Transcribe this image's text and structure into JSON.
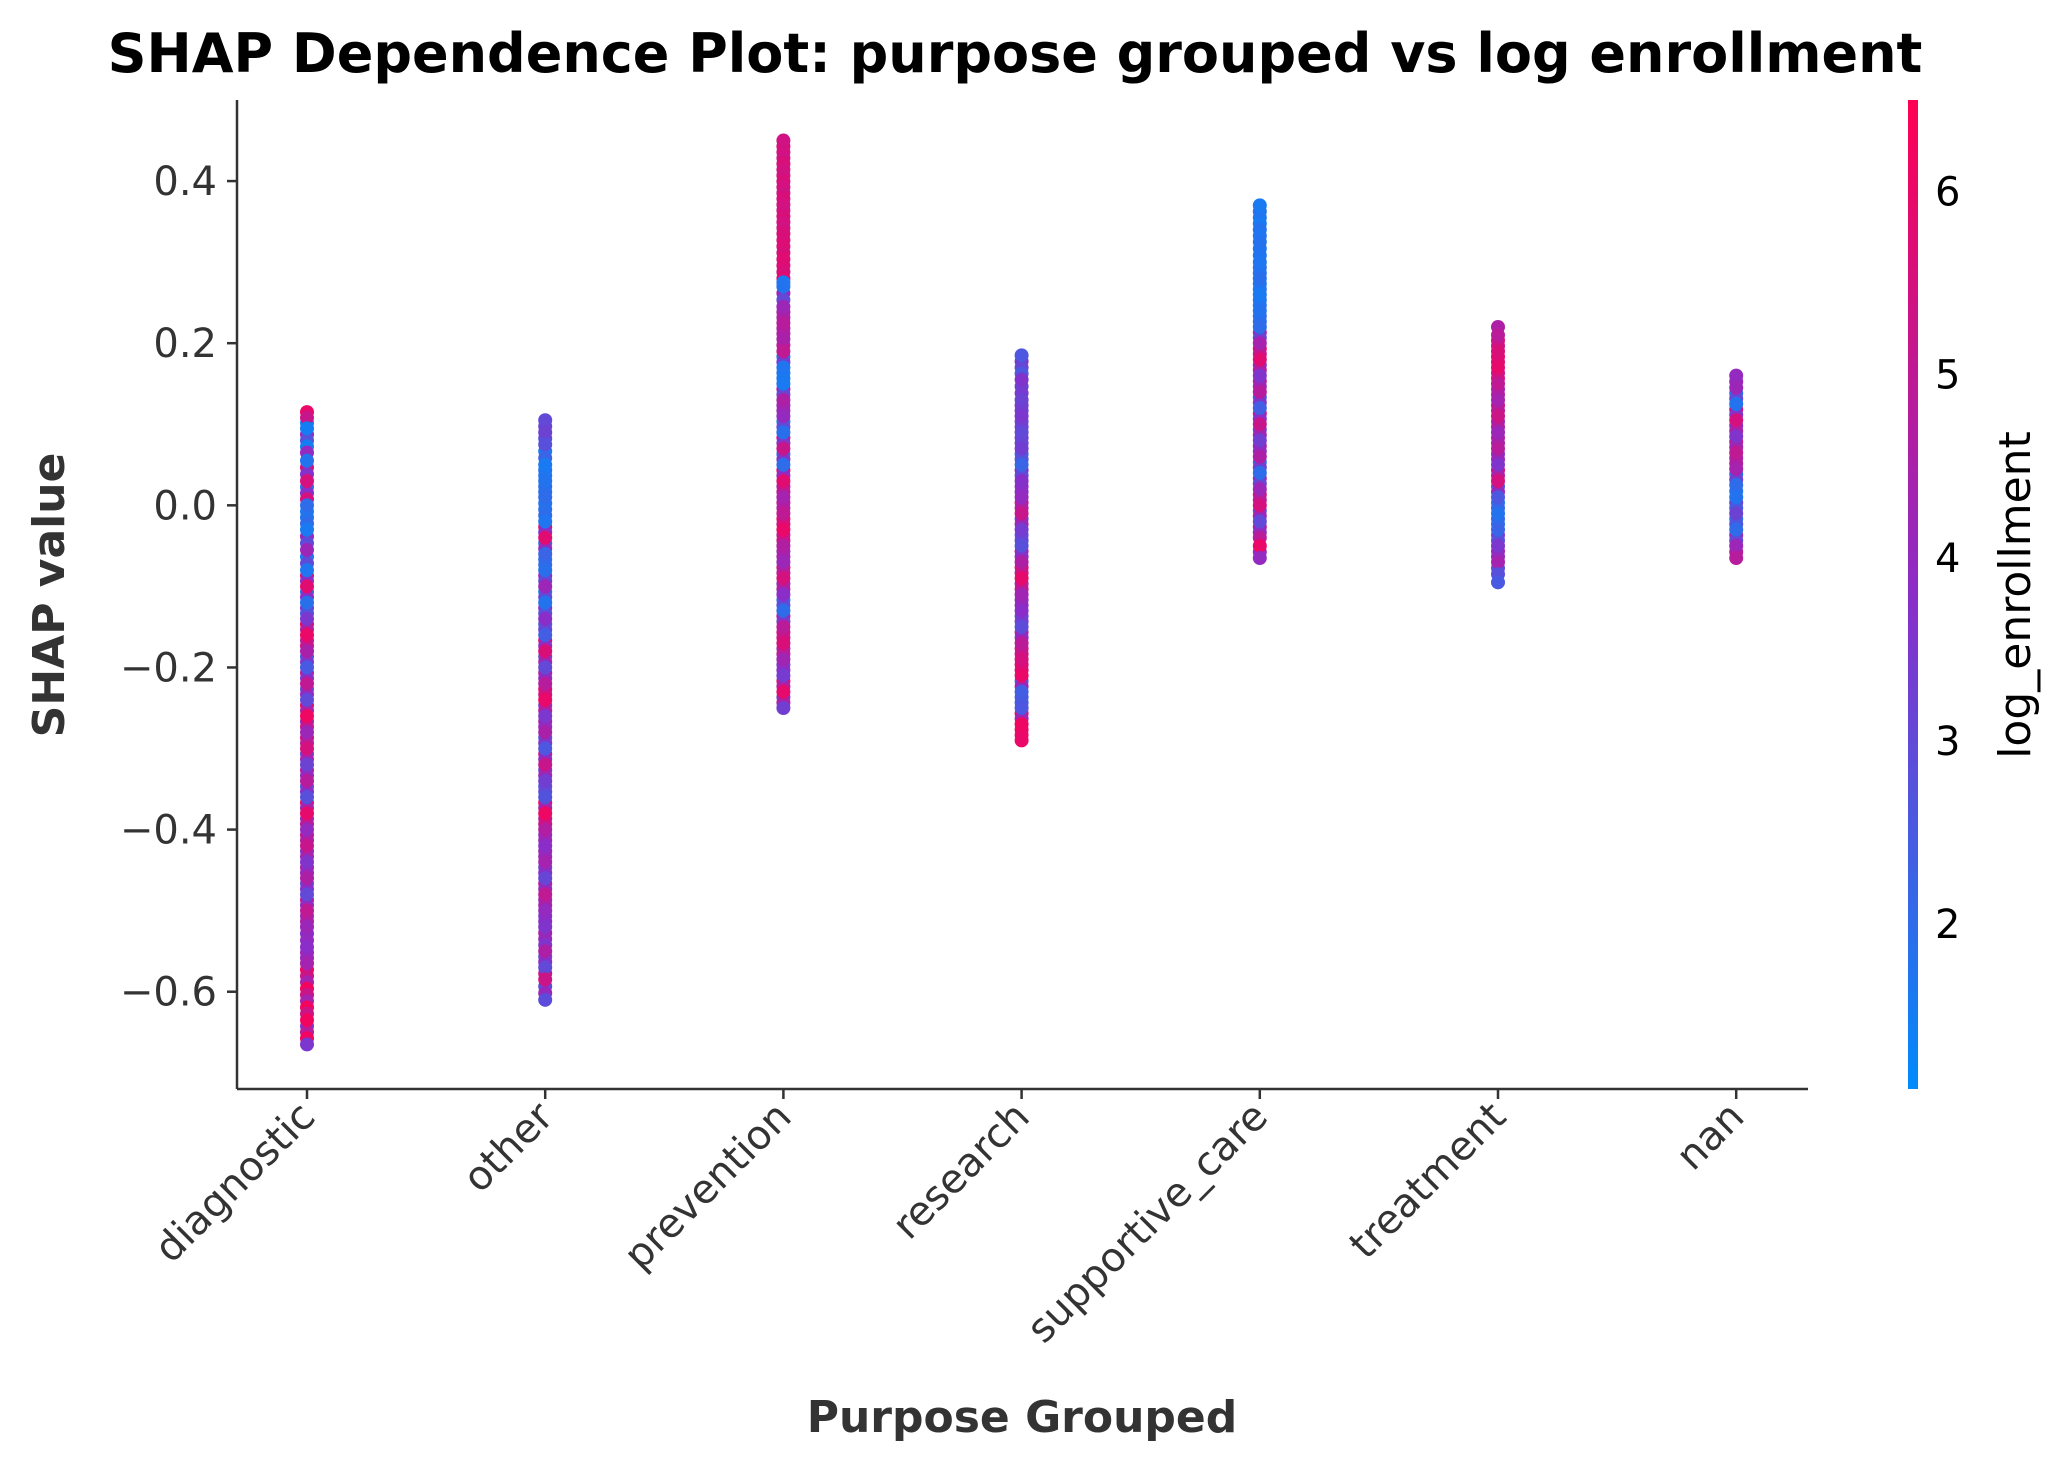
{
  "chart_data": {
    "type": "scatter",
    "title": "SHAP Dependence Plot: purpose grouped vs log enrollment",
    "xlabel": "Purpose Grouped",
    "ylabel": "SHAP value",
    "categories": [
      "diagnostic",
      "other",
      "prevention",
      "research",
      "supportive_care",
      "treatment",
      "nan"
    ],
    "y_ticks": [
      "0.4",
      "0.2",
      "0.0",
      "−0.2",
      "−0.4",
      "−0.6"
    ],
    "y_tick_values": [
      0.4,
      0.2,
      0.0,
      -0.2,
      -0.4,
      -0.6
    ],
    "ylim": [
      -0.72,
      0.5
    ],
    "colorbar": {
      "label": "log_enrollment",
      "ticks": [
        "2",
        "3",
        "4",
        "5",
        "6"
      ],
      "tick_values": [
        2,
        3,
        4,
        5,
        6
      ],
      "range": [
        1.1,
        6.5
      ],
      "color_low": "#008bfb",
      "color_mid": "#8b2dc8",
      "color_high": "#ff0052"
    },
    "series": [
      {
        "category": "diagnostic",
        "min": -0.665,
        "max": 0.115,
        "points": [
          [
            0.115,
            6.0
          ],
          [
            0.108,
            5.2
          ],
          [
            0.095,
            1.5
          ],
          [
            0.065,
            4.0
          ],
          [
            0.055,
            1.8
          ],
          [
            0.03,
            5.5
          ],
          [
            0.0,
            2.0
          ],
          [
            -0.03,
            1.6
          ],
          [
            -0.055,
            4.2
          ],
          [
            -0.08,
            1.7
          ],
          [
            -0.1,
            5.8
          ],
          [
            -0.12,
            1.9
          ],
          [
            -0.14,
            3.5
          ],
          [
            -0.16,
            6.0
          ],
          [
            -0.18,
            4.5
          ],
          [
            -0.2,
            2.5
          ],
          [
            -0.22,
            5.0
          ],
          [
            -0.24,
            3.0
          ],
          [
            -0.26,
            6.1
          ],
          [
            -0.28,
            4.2
          ],
          [
            -0.3,
            5.5
          ],
          [
            -0.32,
            3.2
          ],
          [
            -0.34,
            4.8
          ],
          [
            -0.36,
            2.8
          ],
          [
            -0.38,
            5.9
          ],
          [
            -0.4,
            4.0
          ],
          [
            -0.42,
            5.2
          ],
          [
            -0.44,
            3.6
          ],
          [
            -0.46,
            4.6
          ],
          [
            -0.48,
            3.0
          ],
          [
            -0.5,
            5.0
          ],
          [
            -0.52,
            4.2
          ],
          [
            -0.545,
            3.8
          ],
          [
            -0.565,
            4.4
          ],
          [
            -0.635,
            6.2
          ],
          [
            -0.665,
            3.5
          ]
        ]
      },
      {
        "category": "other",
        "min": -0.61,
        "max": 0.105,
        "points": [
          [
            0.105,
            3.0
          ],
          [
            0.09,
            3.2
          ],
          [
            0.075,
            2.8
          ],
          [
            0.05,
            1.6
          ],
          [
            0.03,
            1.8
          ],
          [
            0.01,
            2.0
          ],
          [
            -0.02,
            1.7
          ],
          [
            -0.04,
            5.8
          ],
          [
            -0.06,
            2.2
          ],
          [
            -0.08,
            1.9
          ],
          [
            -0.1,
            4.2
          ],
          [
            -0.12,
            1.8
          ],
          [
            -0.14,
            3.8
          ],
          [
            -0.16,
            2.4
          ],
          [
            -0.18,
            5.6
          ],
          [
            -0.2,
            3.0
          ],
          [
            -0.22,
            4.8
          ],
          [
            -0.24,
            6.0
          ],
          [
            -0.26,
            3.5
          ],
          [
            -0.28,
            4.5
          ],
          [
            -0.3,
            2.6
          ],
          [
            -0.32,
            5.2
          ],
          [
            -0.34,
            3.3
          ],
          [
            -0.36,
            2.7
          ],
          [
            -0.38,
            6.1
          ],
          [
            -0.4,
            4.7
          ],
          [
            -0.42,
            3.8
          ],
          [
            -0.44,
            4.4
          ],
          [
            -0.46,
            3.1
          ],
          [
            -0.48,
            5.0
          ],
          [
            -0.5,
            4.0
          ],
          [
            -0.52,
            3.6
          ],
          [
            -0.55,
            4.6
          ],
          [
            -0.57,
            3.0
          ],
          [
            -0.585,
            5.3
          ],
          [
            -0.61,
            2.9
          ]
        ]
      },
      {
        "category": "prevention",
        "min": -0.25,
        "max": 0.45,
        "points": [
          [
            0.45,
            5.4
          ],
          [
            0.335,
            5.6
          ],
          [
            0.28,
            5.8
          ],
          [
            0.275,
            1.6
          ],
          [
            0.27,
            1.8
          ],
          [
            0.245,
            4.2
          ],
          [
            0.225,
            4.8
          ],
          [
            0.205,
            4.5
          ],
          [
            0.19,
            5.0
          ],
          [
            0.17,
            1.7
          ],
          [
            0.15,
            1.6
          ],
          [
            0.13,
            4.6
          ],
          [
            0.11,
            4.0
          ],
          [
            0.09,
            1.9
          ],
          [
            0.07,
            5.2
          ],
          [
            0.05,
            2.0
          ],
          [
            0.03,
            5.8
          ],
          [
            0.01,
            4.4
          ],
          [
            -0.01,
            5.0
          ],
          [
            -0.03,
            6.0
          ],
          [
            -0.05,
            4.7
          ],
          [
            -0.07,
            4.2
          ],
          [
            -0.09,
            5.5
          ],
          [
            -0.11,
            3.8
          ],
          [
            -0.13,
            2.0
          ],
          [
            -0.15,
            4.9
          ],
          [
            -0.17,
            5.6
          ],
          [
            -0.19,
            4.3
          ],
          [
            -0.21,
            3.4
          ],
          [
            -0.23,
            5.9
          ],
          [
            -0.25,
            3.3
          ]
        ]
      },
      {
        "category": "research",
        "min": -0.29,
        "max": 0.185,
        "points": [
          [
            0.185,
            2.6
          ],
          [
            0.155,
            3.6
          ],
          [
            0.13,
            3.2
          ],
          [
            0.11,
            3.5
          ],
          [
            0.09,
            3.0
          ],
          [
            0.07,
            3.3
          ],
          [
            0.05,
            2.2
          ],
          [
            0.03,
            3.7
          ],
          [
            0.01,
            4.0
          ],
          [
            -0.01,
            5.2
          ],
          [
            -0.03,
            3.4
          ],
          [
            -0.05,
            2.8
          ],
          [
            -0.07,
            4.6
          ],
          [
            -0.09,
            5.9
          ],
          [
            -0.11,
            4.3
          ],
          [
            -0.13,
            3.8
          ],
          [
            -0.15,
            2.9
          ],
          [
            -0.17,
            4.9
          ],
          [
            -0.19,
            5.5
          ],
          [
            -0.21,
            6.0
          ],
          [
            -0.23,
            2.4
          ],
          [
            -0.25,
            2.6
          ],
          [
            -0.27,
            6.1
          ],
          [
            -0.29,
            6.0
          ]
        ]
      },
      {
        "category": "supportive_care",
        "min": -0.065,
        "max": 0.37,
        "points": [
          [
            0.37,
            1.6
          ],
          [
            0.325,
            1.8
          ],
          [
            0.3,
            1.7
          ],
          [
            0.28,
            1.9
          ],
          [
            0.26,
            1.6
          ],
          [
            0.24,
            1.8
          ],
          [
            0.22,
            2.0
          ],
          [
            0.2,
            4.4
          ],
          [
            0.18,
            5.8
          ],
          [
            0.16,
            3.6
          ],
          [
            0.14,
            4.8
          ],
          [
            0.12,
            2.4
          ],
          [
            0.1,
            5.2
          ],
          [
            0.08,
            3.3
          ],
          [
            0.06,
            4.6
          ],
          [
            0.04,
            2.0
          ],
          [
            0.02,
            4.2
          ],
          [
            0.0,
            5.5
          ],
          [
            -0.02,
            3.0
          ],
          [
            -0.04,
            4.9
          ],
          [
            -0.05,
            6.0
          ],
          [
            -0.065,
            4.0
          ]
        ]
      },
      {
        "category": "treatment",
        "min": -0.095,
        "max": 0.22,
        "points": [
          [
            0.22,
            4.6
          ],
          [
            0.21,
            4.9
          ],
          [
            0.19,
            5.6
          ],
          [
            0.17,
            5.9
          ],
          [
            0.15,
            5.0
          ],
          [
            0.13,
            4.4
          ],
          [
            0.11,
            5.3
          ],
          [
            0.09,
            4.2
          ],
          [
            0.07,
            4.8
          ],
          [
            0.05,
            3.6
          ],
          [
            0.03,
            5.5
          ],
          [
            0.01,
            2.6
          ],
          [
            -0.01,
            1.8
          ],
          [
            -0.03,
            2.2
          ],
          [
            -0.05,
            3.5
          ],
          [
            -0.07,
            4.4
          ],
          [
            -0.085,
            2.8
          ],
          [
            -0.095,
            2.5
          ]
        ]
      },
      {
        "category": "nan",
        "min": -0.065,
        "max": 0.16,
        "points": [
          [
            0.16,
            4.0
          ],
          [
            0.145,
            4.2
          ],
          [
            0.125,
            1.8
          ],
          [
            0.105,
            5.5
          ],
          [
            0.085,
            3.6
          ],
          [
            0.065,
            5.0
          ],
          [
            0.045,
            4.4
          ],
          [
            0.025,
            2.0
          ],
          [
            0.01,
            1.8
          ],
          [
            -0.01,
            3.2
          ],
          [
            -0.03,
            2.0
          ],
          [
            -0.05,
            4.2
          ],
          [
            -0.065,
            4.8
          ]
        ]
      }
    ]
  }
}
